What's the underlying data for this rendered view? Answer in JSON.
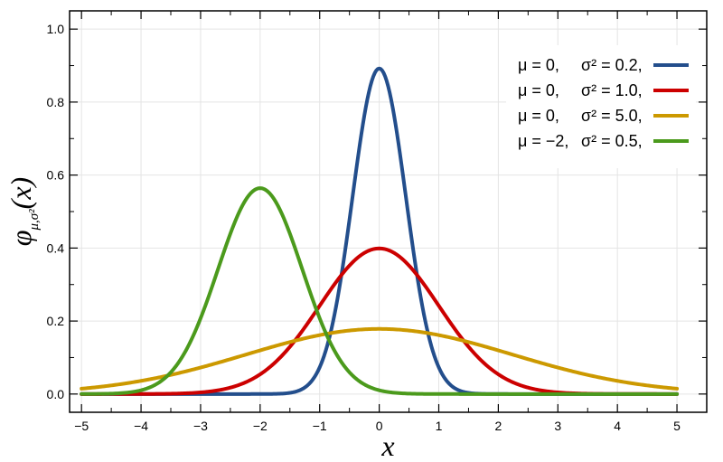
{
  "chart_data": {
    "type": "line",
    "xlabel": "x",
    "ylabel": {
      "symbol": "φ",
      "subscript": "μ,σ²",
      "argument": "(x)"
    },
    "xlim": [
      -5.2,
      5.5
    ],
    "ylim": [
      -0.05,
      1.05
    ],
    "x_ticks": [
      "−5",
      "−4",
      "−3",
      "−2",
      "−1",
      "0",
      "1",
      "2",
      "3",
      "4",
      "5"
    ],
    "x_tick_values": [
      -5,
      -4,
      -3,
      -2,
      -1,
      0,
      1,
      2,
      3,
      4,
      5
    ],
    "y_ticks": [
      "0.0",
      "0.2",
      "0.4",
      "0.6",
      "0.8",
      "1.0"
    ],
    "y_tick_values": [
      0.0,
      0.2,
      0.4,
      0.6,
      0.8,
      1.0
    ],
    "grid": true,
    "legend_position": "top-right",
    "series": [
      {
        "mu_label": "μ = 0,",
        "sigma_label": "σ² = 0.2,",
        "mu": 0,
        "variance": 0.2,
        "color": "#234e8c"
      },
      {
        "mu_label": "μ = 0,",
        "sigma_label": "σ² = 1.0,",
        "mu": 0,
        "variance": 1.0,
        "color": "#cc0000"
      },
      {
        "mu_label": "μ = 0,",
        "sigma_label": "σ² = 5.0,",
        "mu": 0,
        "variance": 5.0,
        "color": "#cc9900"
      },
      {
        "mu_label": "μ = −2,",
        "sigma_label": "σ² = 0.5,",
        "mu": -2,
        "variance": 0.5,
        "color": "#4b9a1c"
      }
    ],
    "x_range": [
      -5,
      5
    ]
  }
}
